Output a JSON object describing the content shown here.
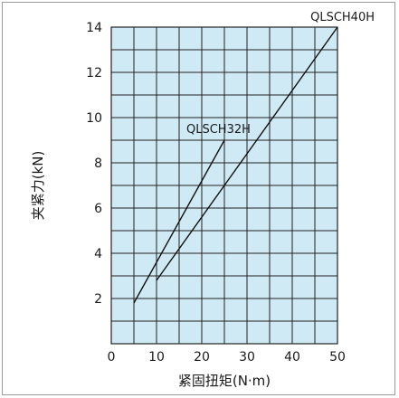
{
  "chart_data": {
    "type": "line",
    "xlabel": "紧固扭矩(N·m)",
    "ylabel": "夹紧力(kN)",
    "xlim": [
      0,
      50
    ],
    "ylim": [
      0,
      14
    ],
    "x_ticks": [
      "0",
      "10",
      "20",
      "30",
      "40",
      "50"
    ],
    "y_ticks": [
      "2",
      "4",
      "6",
      "8",
      "10",
      "12",
      "14"
    ],
    "grid": true,
    "plot_background": "#cfeaf5",
    "series": [
      {
        "name": "QLSCH32H",
        "x": [
          5,
          25
        ],
        "y": [
          1.8,
          9.0
        ]
      },
      {
        "name": "QLSCH40H",
        "x": [
          10,
          50
        ],
        "y": [
          2.8,
          14.0
        ]
      }
    ]
  }
}
